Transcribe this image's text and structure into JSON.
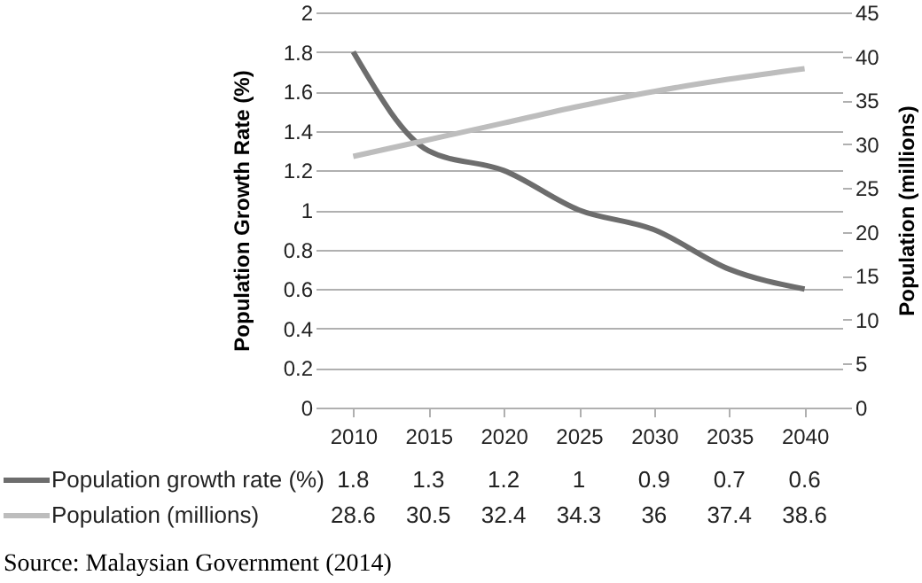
{
  "chart_data": {
    "type": "line",
    "categories": [
      "2010",
      "2015",
      "2020",
      "2025",
      "2030",
      "2035",
      "2040"
    ],
    "series": [
      {
        "name": "Population growth rate (%)",
        "color": "#6d6d6d",
        "values": [
          1.8,
          1.3,
          1.2,
          1,
          0.9,
          0.7,
          0.6
        ]
      },
      {
        "name": "Population (millions)",
        "color": "#bdbdbd",
        "axis": "y2",
        "values": [
          28.6,
          30.5,
          32.4,
          34.3,
          36,
          37.4,
          38.6
        ]
      }
    ],
    "ylabel": "Population Growth Rate (%)",
    "y2label": "Population (millions)",
    "ylim": [
      0,
      2
    ],
    "yticks": [
      0,
      0.2,
      0.4,
      0.6,
      0.8,
      1,
      1.2,
      1.4,
      1.6,
      1.8,
      2
    ],
    "y2lim": [
      0,
      45
    ],
    "y2ticks": [
      0,
      5,
      10,
      15,
      20,
      25,
      30,
      35,
      40,
      45
    ],
    "grid": "y",
    "legend": "bottom",
    "data_labels": true,
    "line_style": "solid",
    "marker": "none",
    "annotations": [
      "Source: Malaysian Government (2014)"
    ]
  }
}
